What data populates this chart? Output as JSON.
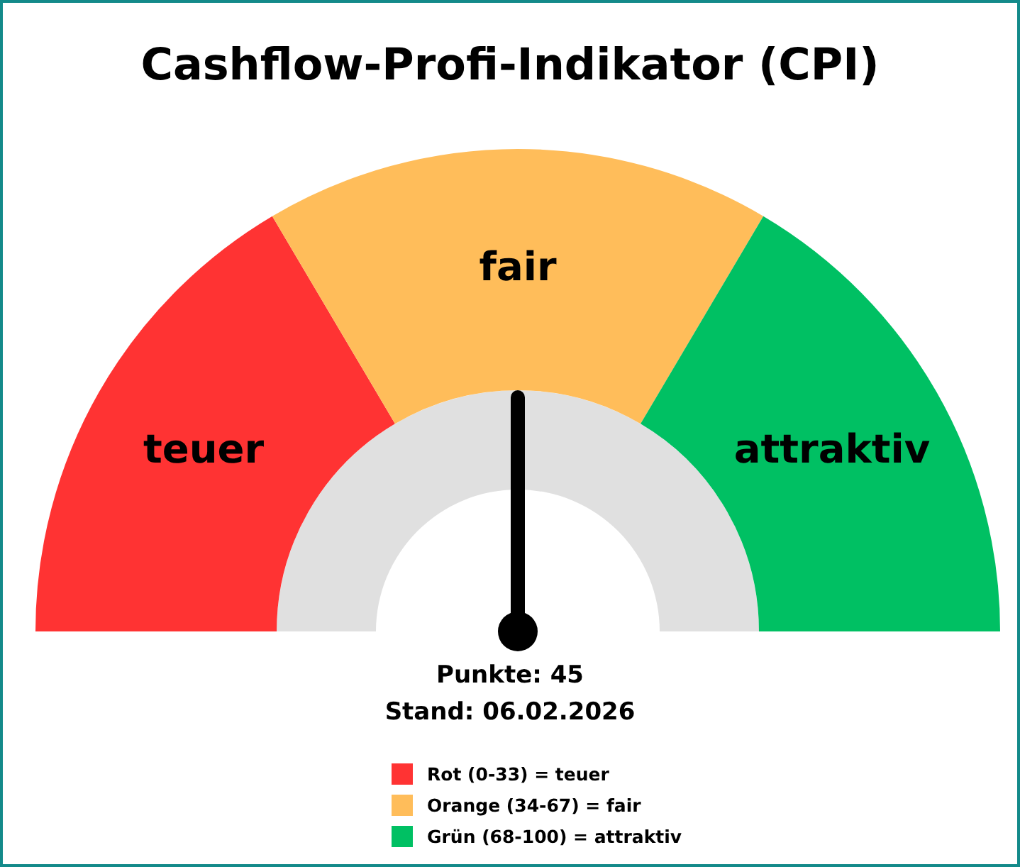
{
  "chart_data": {
    "type": "donut",
    "title": "Cashflow-Profi-Indikator (CPI)",
    "categories": [
      "teuer",
      "fair",
      "attraktiv"
    ],
    "values": [
      33,
      34,
      33
    ],
    "colors": [
      "#ff3333",
      "#ffbd5a",
      "#00c063"
    ],
    "needle": "fair",
    "annotations": [
      "Punkte: 45",
      "Stand: 06.02.2026",
      "Rot (0-33) = teuer",
      "Orange (34-67) = fair",
      "Grün (68-100) = attraktiv"
    ]
  }
}
